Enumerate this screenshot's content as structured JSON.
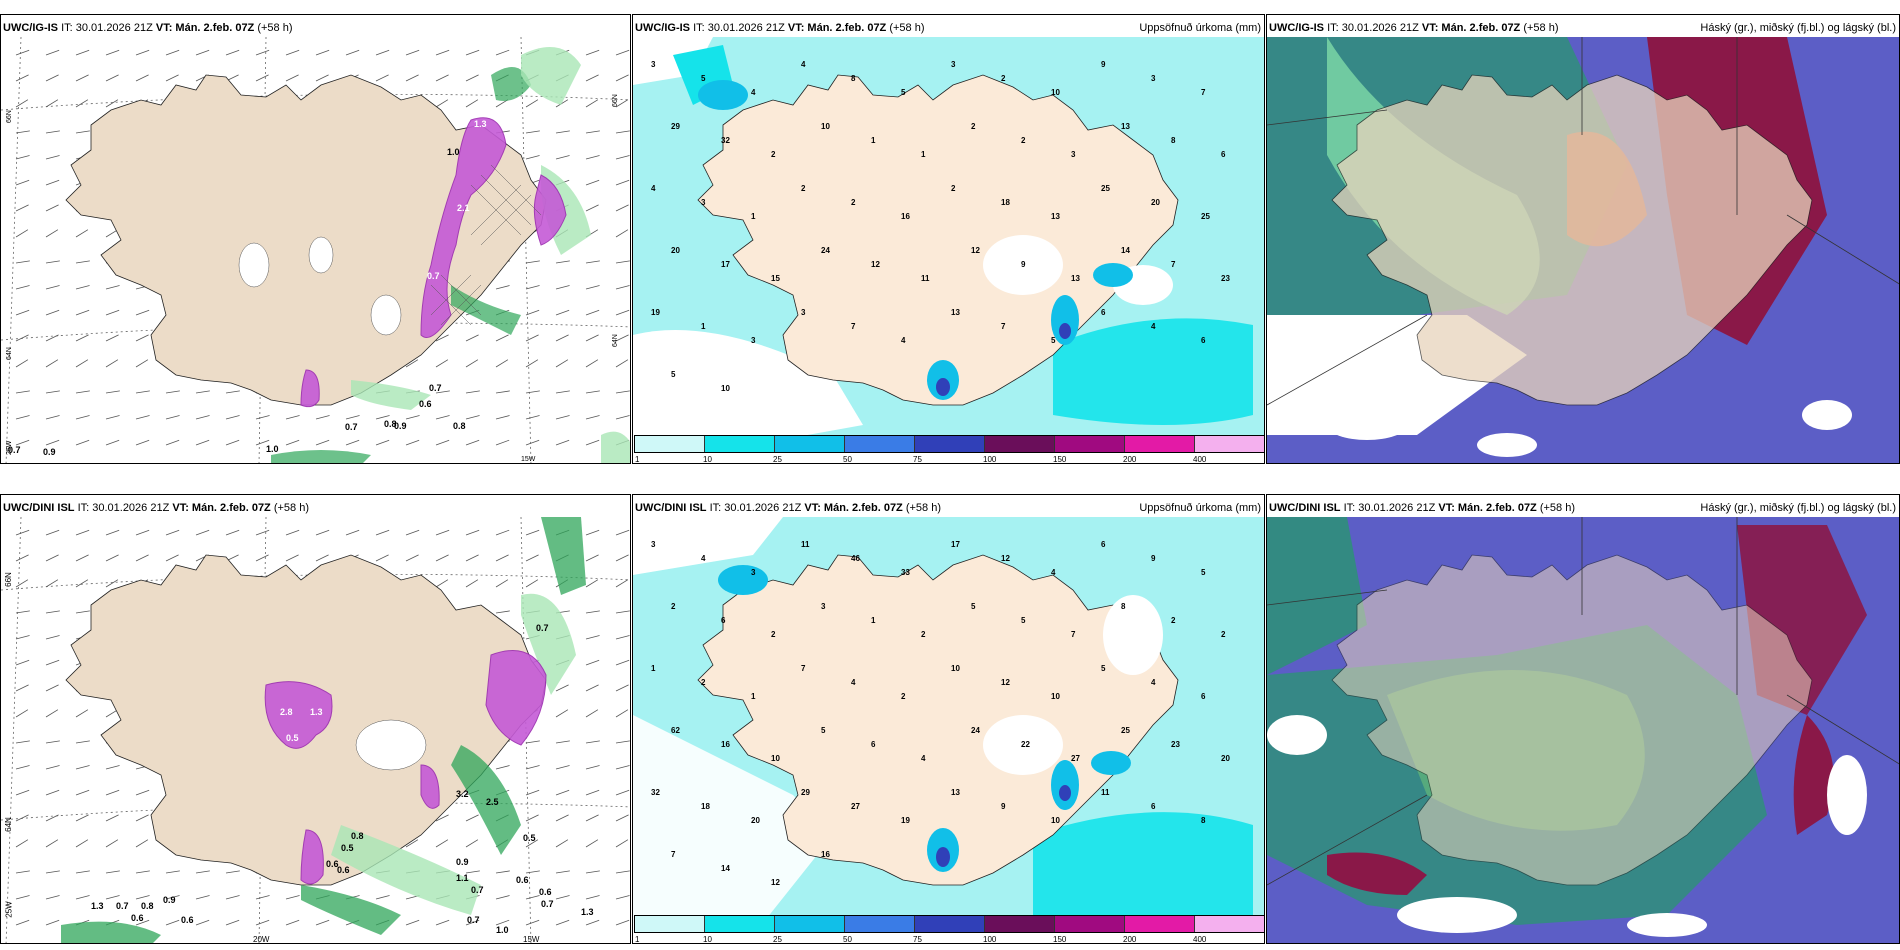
{
  "panels": {
    "r1c1": {
      "model": "UWC/IG-IS",
      "it": "IT: 30.01.2026 21Z",
      "vt_label": "VT:",
      "vt": "Mán. 2.feb. 07Z",
      "step": "(+58 h)"
    },
    "r1c2": {
      "model": "UWC/IG-IS",
      "it": "IT: 30.01.2026 21Z",
      "vt_label": "VT:",
      "vt": "Mán. 2.feb. 07Z",
      "step": "(+58 h)",
      "right_title": "Uppsöfnuð úrkoma (mm)"
    },
    "r1c3": {
      "model": "UWC/IG-IS",
      "it": "IT: 30.01.2026 21Z",
      "vt_label": "VT:",
      "vt": "Mán. 2.feb. 07Z",
      "step": "(+58 h)",
      "right_title": "Háský (gr.), miðský (fj.bl.) og lágský (bl.)"
    },
    "r2c1": {
      "model": "UWC/DINI ISL",
      "it": "IT: 30.01.2026 21Z",
      "vt_label": "VT:",
      "vt": "Mán. 2.feb. 07Z",
      "step": "(+58 h)"
    },
    "r2c2": {
      "model": "UWC/DINI ISL",
      "it": "IT: 30.01.2026 21Z",
      "vt_label": "VT:",
      "vt": "Mán. 2.feb. 07Z",
      "step": "(+58 h)",
      "right_title": "Uppsöfnuð úrkoma (mm)"
    },
    "r2c3": {
      "model": "UWC/DINI ISL",
      "it": "IT: 30.01.2026 21Z",
      "vt_label": "VT:",
      "vt": "Mán. 2.feb. 07Z",
      "step": "(+58 h)",
      "right_title": "Háský (gr.), miðský (fj.bl.) og lágský (bl.)"
    }
  },
  "grid_labels": {
    "lat66": "66N",
    "lat64": "64N",
    "lon25": "25W",
    "lon15": "15W",
    "lon20": "20W"
  },
  "colorbar": {
    "labels": [
      "1",
      "10",
      "25",
      "50",
      "75",
      "100",
      "150",
      "200",
      "400"
    ],
    "colors": [
      "#cff8f8",
      "#15e3ea",
      "#11bfe8",
      "#3a7ce6",
      "#3040b8",
      "#6a0e5a",
      "#a00a80",
      "#e31aa6",
      "#f4b0ee"
    ]
  },
  "r1_wind_values": [
    "1.3",
    "1.0",
    "2.1",
    "0.7",
    "0.7",
    "0.6",
    "0.7",
    "0.8",
    "0.9",
    "0.8",
    "0.7",
    "0.9",
    "1.0"
  ],
  "r1_precip": [
    "3",
    "5",
    "4",
    "4",
    "8",
    "5",
    "3",
    "2",
    "10",
    "9",
    "3",
    "7",
    "29",
    "32",
    "2",
    "10",
    "1",
    "1",
    "2",
    "2",
    "3",
    "13",
    "8",
    "6",
    "4",
    "3",
    "1",
    "2",
    "2",
    "16",
    "2",
    "18",
    "13",
    "25",
    "20",
    "25",
    "20",
    "17",
    "15",
    "24",
    "12",
    "11",
    "12",
    "9",
    "13",
    "14",
    "7",
    "23",
    "19",
    "1",
    "3",
    "3",
    "7",
    "4",
    "13",
    "7",
    "5",
    "6",
    "4",
    "6",
    "5",
    "10"
  ],
  "r2_wind_values": [
    "2.8",
    "1.3",
    "0.5",
    "0.7",
    "0.8",
    "0.5",
    "0.6",
    "0.9",
    "1.1",
    "0.7",
    "0.6",
    "1.3",
    "0.7",
    "0.8",
    "0.6",
    "0.9",
    "0.6",
    "0.7",
    "1.0",
    "0.7",
    "0.6",
    "0.5",
    "0.6",
    "1.3",
    "2.5",
    "3.2"
  ],
  "r2_precip": [
    "3",
    "4",
    "3",
    "11",
    "46",
    "33",
    "17",
    "12",
    "4",
    "6",
    "9",
    "5",
    "2",
    "6",
    "2",
    "3",
    "1",
    "2",
    "5",
    "5",
    "7",
    "8",
    "2",
    "2",
    "1",
    "2",
    "1",
    "7",
    "4",
    "2",
    "10",
    "12",
    "10",
    "5",
    "4",
    "6",
    "62",
    "16",
    "10",
    "5",
    "6",
    "4",
    "24",
    "22",
    "27",
    "25",
    "23",
    "20",
    "32",
    "18",
    "20",
    "29",
    "27",
    "19",
    "13",
    "9",
    "10",
    "11",
    "6",
    "8",
    "7",
    "14",
    "12",
    "16"
  ]
}
